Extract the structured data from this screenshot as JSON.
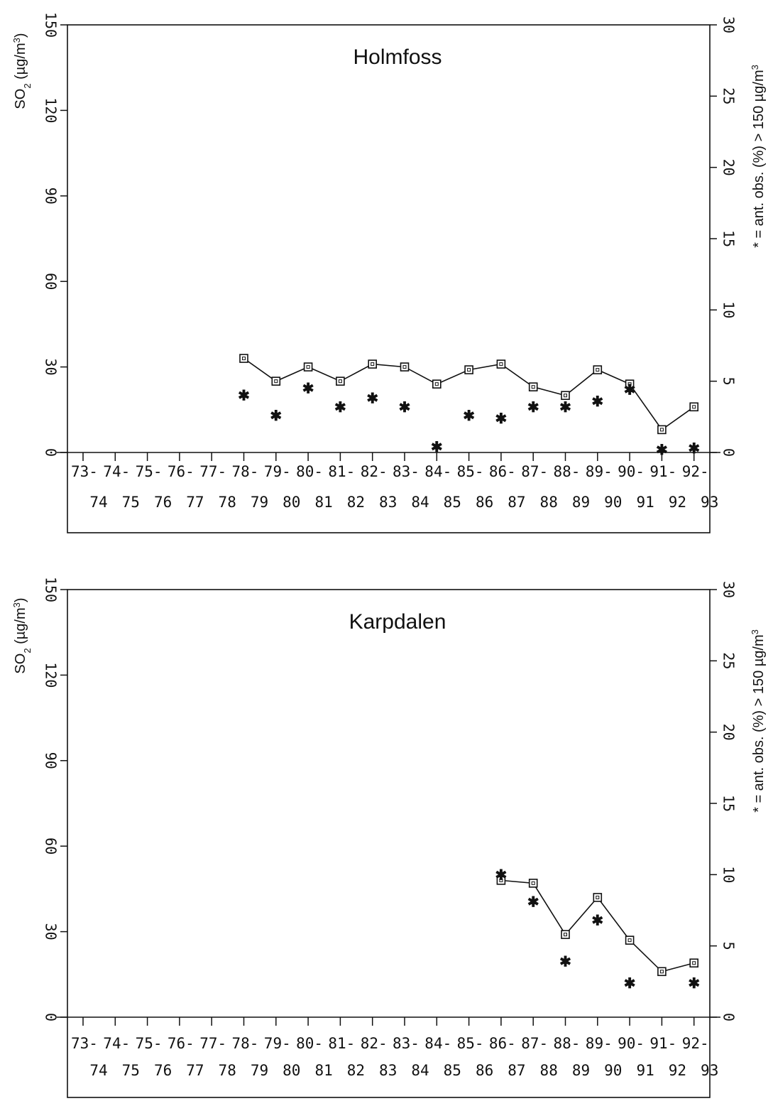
{
  "chart_data": [
    {
      "type": "line",
      "title": "Holmfoss",
      "ylabel": "SO2 (µg/m³)",
      "ylabel_main": "SO",
      "ylabel_sub": "2",
      "ylabel_rest": " (µg/m",
      "ylabel_sup": "3",
      "ylabel_close": ")",
      "y2label": "* = ant. obs. (%) > 150 µg/m³",
      "y2label_main": "* = ant. obs. (%) > 150 µg/m",
      "y2label_sup": "3",
      "ylim": [
        0,
        150
      ],
      "y2lim": [
        0,
        30
      ],
      "yticks": [
        "0",
        "30",
        "60",
        "90",
        "120",
        "150"
      ],
      "y2ticks": [
        "0",
        "5",
        "10",
        "15",
        "20",
        "25",
        "30"
      ],
      "xticks_top": [
        "73-",
        "74-",
        "75-",
        "76-",
        "77-",
        "78-",
        "79-",
        "80-",
        "81-",
        "82-",
        "83-",
        "84-",
        "85-",
        "86-",
        "87-",
        "88-",
        "89-",
        "90-",
        "91-",
        "92-"
      ],
      "xticks_bottom": [
        "74",
        "75",
        "76",
        "77",
        "78",
        "79",
        "80",
        "81",
        "82",
        "83",
        "84",
        "85",
        "86",
        "87",
        "88",
        "89",
        "90",
        "91",
        "92",
        "93"
      ],
      "grid": false,
      "series": [
        {
          "marker": "square",
          "axis": "left",
          "start_index": 5,
          "values": [
            33,
            25,
            30,
            25,
            31,
            30,
            24,
            29,
            31,
            23,
            20,
            29,
            24,
            8,
            16
          ]
        },
        {
          "marker": "star",
          "axis": "right",
          "start_index": 5,
          "values": [
            4.0,
            2.6,
            4.5,
            3.2,
            3.8,
            3.2,
            0.4,
            2.6,
            2.4,
            3.2,
            3.2,
            3.6,
            4.4,
            0.2,
            0.3
          ]
        }
      ]
    },
    {
      "type": "line",
      "title": "Karpdalen",
      "ylabel": "SO2 (µg/m³)",
      "ylabel_main": "SO",
      "ylabel_sub": "2",
      "ylabel_rest": " (µg/m",
      "ylabel_sup": "3",
      "ylabel_close": ")",
      "y2label": "* = ant. obs. (%) > 150 µg/m³",
      "y2label_main": "* = ant. obs. (%) > 150 µg/m",
      "y2label_sup": "3",
      "ylim": [
        0,
        150
      ],
      "y2lim": [
        0,
        30
      ],
      "yticks": [
        "0",
        "30",
        "60",
        "90",
        "120",
        "150"
      ],
      "y2ticks": [
        "0",
        "5",
        "10",
        "15",
        "20",
        "25",
        "30"
      ],
      "xticks_top": [
        "73-",
        "74-",
        "75-",
        "76-",
        "77-",
        "78-",
        "79-",
        "80-",
        "81-",
        "82-",
        "83-",
        "84-",
        "85-",
        "86-",
        "87-",
        "88-",
        "89-",
        "90-",
        "91-",
        "92-"
      ],
      "xticks_bottom": [
        "74",
        "75",
        "76",
        "77",
        "78",
        "79",
        "80",
        "81",
        "82",
        "83",
        "84",
        "85",
        "86",
        "87",
        "88",
        "89",
        "90",
        "91",
        "92",
        "93"
      ],
      "grid": false,
      "series": [
        {
          "marker": "square",
          "axis": "left",
          "start_index": 13,
          "values": [
            48,
            47,
            29,
            42,
            27,
            16,
            19
          ]
        },
        {
          "marker": "star",
          "axis": "right",
          "start_index": 13,
          "values": [
            10.0,
            8.1,
            3.9,
            6.8,
            2.4,
            null,
            2.4
          ]
        }
      ]
    }
  ]
}
